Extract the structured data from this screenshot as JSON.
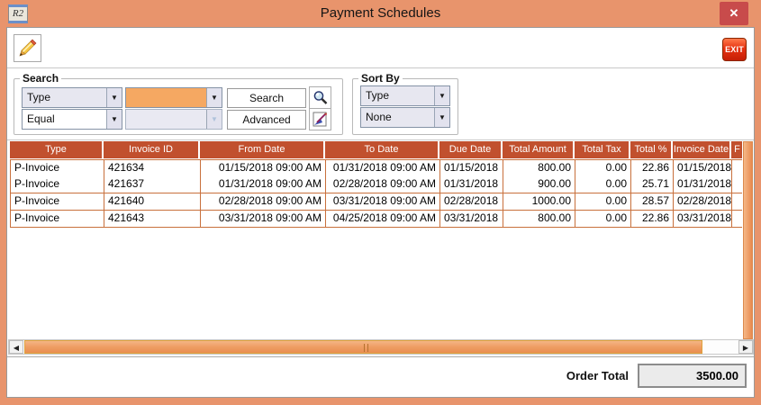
{
  "window": {
    "title": "Payment Schedules",
    "app_icon_text": "R2",
    "close_glyph": "✕"
  },
  "toolbar": {
    "exit_label": "EXIT"
  },
  "icons": {
    "dropdown": "▼",
    "scroll_left": "◀",
    "scroll_right": "▶"
  },
  "search": {
    "legend": "Search",
    "field_value": "Type",
    "operator_value": "Equal",
    "value_combo": "",
    "value2_combo": "",
    "search_label": "Search",
    "advanced_label": "Advanced"
  },
  "sort": {
    "legend": "Sort By",
    "primary_value": "Type",
    "secondary_value": "None"
  },
  "table": {
    "columns": [
      "Type",
      "Invoice ID",
      "From Date",
      "To Date",
      "Due Date",
      "Total Amount",
      "Total Tax",
      "Total %",
      "Invoice Date",
      "F"
    ],
    "rows": [
      [
        "P-Invoice",
        "421634",
        "01/15/2018 09:00 AM",
        "01/31/2018 09:00 AM",
        "01/15/2018",
        "800.00",
        "0.00",
        "22.86",
        "01/15/2018",
        ""
      ],
      [
        "P-Invoice",
        "421637",
        "01/31/2018 09:00 AM",
        "02/28/2018 09:00 AM",
        "01/31/2018",
        "900.00",
        "0.00",
        "25.71",
        "01/31/2018",
        ""
      ],
      [
        "P-Invoice",
        "421640",
        "02/28/2018 09:00 AM",
        "03/31/2018 09:00 AM",
        "02/28/2018",
        "1000.00",
        "0.00",
        "28.57",
        "02/28/2018",
        ""
      ],
      [
        "P-Invoice",
        "421643",
        "03/31/2018 09:00 AM",
        "04/25/2018 09:00 AM",
        "03/31/2018",
        "800.00",
        "0.00",
        "22.86",
        "03/31/2018",
        ""
      ]
    ]
  },
  "footer": {
    "order_total_label": "Order Total",
    "order_total_value": "3500.00"
  },
  "colors": {
    "titlebar": "#E8946C",
    "table_header_bg": "#C1502E",
    "cell_border": "#C8703C",
    "close_button_bg": "#C84B4B",
    "accent_orange": "#F5A862",
    "exit_button_red": "#E63211"
  }
}
